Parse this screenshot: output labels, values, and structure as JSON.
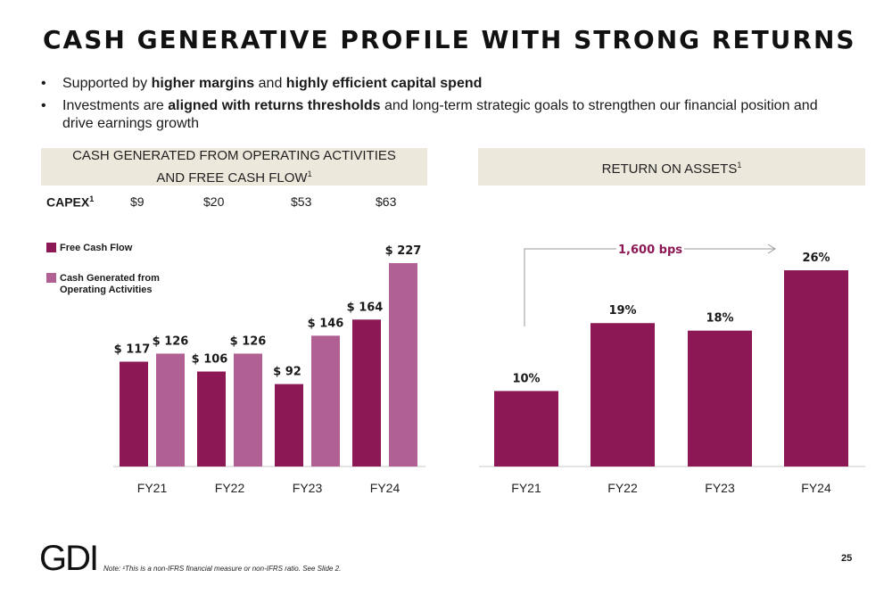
{
  "title": "CASH GENERATIVE PROFILE WITH STRONG RETURNS",
  "bullets": {
    "b1_pre": "Supported by ",
    "b1_bold1": "higher margins",
    "b1_mid": " and ",
    "b1_bold2": "highly efficient capital spend",
    "b2_pre": "Investments are ",
    "b2_bold": "aligned with returns thresholds",
    "b2_post": " and long-term strategic goals to strengthen our financial position and drive earnings growth"
  },
  "colors": {
    "primary": "#8c1856",
    "secondary": "#b06093",
    "header_bg": "#ede8dc"
  },
  "left_panel": {
    "header_line1": "CASH GENERATED FROM OPERATING ACTIVITIES",
    "header_line2": "AND FREE CASH FLOW",
    "header_sup": "1",
    "capex_label": "CAPEX",
    "capex_sup": "1",
    "capex_values": [
      "$9",
      "$20",
      "$53",
      "$63"
    ]
  },
  "right_panel": {
    "header": "RETURN ON ASSETS",
    "header_sup": "1"
  },
  "chart_data": [
    {
      "type": "bar",
      "title": "CASH GENERATED FROM OPERATING ACTIVITIES AND FREE CASH FLOW",
      "categories": [
        "FY21",
        "FY22",
        "FY23",
        "FY24"
      ],
      "series": [
        {
          "name": "Free Cash Flow",
          "values": [
            117,
            106,
            92,
            164
          ],
          "labels": [
            "$ 117",
            "$ 106",
            "$ 92",
            "$ 164"
          ],
          "color": "#8c1856"
        },
        {
          "name": "Cash Generated from Operating Activities",
          "values": [
            126,
            126,
            146,
            227
          ],
          "labels": [
            "$ 126",
            "$ 126",
            "$ 146",
            "$ 227"
          ],
          "color": "#b06093"
        }
      ],
      "legend_position": "top-left",
      "grid": false
    },
    {
      "type": "bar",
      "title": "RETURN ON ASSETS",
      "categories": [
        "FY21",
        "FY22",
        "FY23",
        "FY24"
      ],
      "values": [
        10,
        19,
        18,
        26
      ],
      "labels": [
        "10%",
        "19%",
        "18%",
        "26%"
      ],
      "color": "#8c1856",
      "annotation": "1,600 bps",
      "grid": false
    }
  ],
  "footer": {
    "logo": "GDI",
    "note": "Note: ¹This is a non-IFRS financial measure or non-IFRS ratio. See Slide 2.",
    "page_number": "25"
  }
}
